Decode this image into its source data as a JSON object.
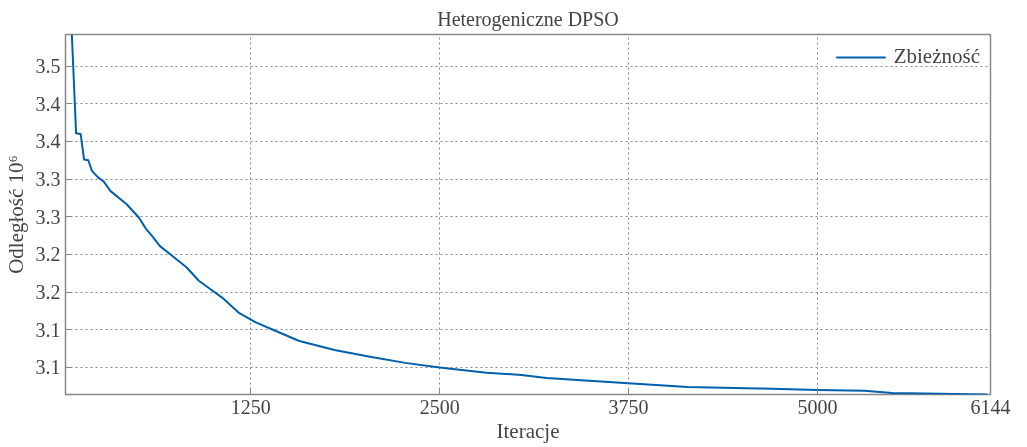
{
  "chart_data": {
    "type": "line",
    "title": "Heterogeniczne DPSO",
    "xlabel": "Iteracje",
    "ylabel": "Odległość 10⁶",
    "xlim": [
      25,
      6144
    ],
    "ylim": [
      3.014,
      3.492
    ],
    "xticks": [
      1250,
      2500,
      3750,
      5000,
      6144
    ],
    "yticks": [
      {
        "value": 3.05,
        "label": "3.1"
      },
      {
        "value": 3.1,
        "label": "3.1"
      },
      {
        "value": 3.15,
        "label": "3.2"
      },
      {
        "value": 3.2,
        "label": "3.2"
      },
      {
        "value": 3.25,
        "label": "3.3"
      },
      {
        "value": 3.3,
        "label": "3.3"
      },
      {
        "value": 3.35,
        "label": "3.4"
      },
      {
        "value": 3.4,
        "label": "3.4"
      },
      {
        "value": 3.45,
        "label": "3.5"
      }
    ],
    "grid": true,
    "legend": "top right",
    "line_style": "solid",
    "marker": "none",
    "series": [
      {
        "name": "Zbieżność",
        "color": "#0060ad",
        "x": [
          67,
          95,
          125,
          148,
          176,
          200,
          242,
          277,
          323,
          428,
          510,
          557,
          592,
          650,
          732,
          825,
          907,
          989,
          1059,
          1175,
          1280,
          1409,
          1572,
          1805,
          2039,
          2272,
          2499,
          2810,
          3043,
          3206,
          3748,
          4140,
          4607,
          5000,
          5310,
          5494,
          6124
        ],
        "values": [
          3.492,
          3.361,
          3.36,
          3.326,
          3.325,
          3.311,
          3.302,
          3.297,
          3.284,
          3.267,
          3.249,
          3.234,
          3.226,
          3.211,
          3.198,
          3.183,
          3.165,
          3.153,
          3.143,
          3.122,
          3.11,
          3.099,
          3.085,
          3.073,
          3.064,
          3.056,
          3.05,
          3.043,
          3.04,
          3.036,
          3.029,
          3.024,
          3.022,
          3.02,
          3.019,
          3.016,
          3.014
        ]
      }
    ]
  }
}
